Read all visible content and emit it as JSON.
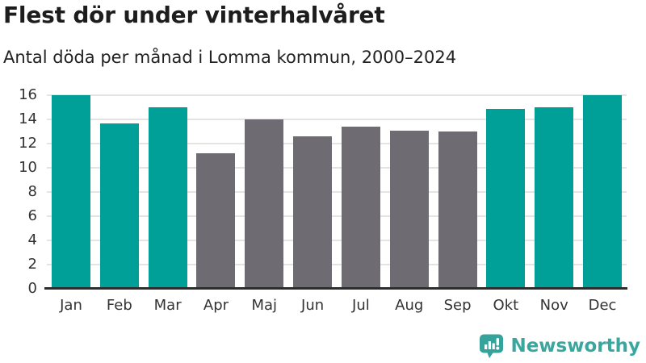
{
  "header": {
    "title": "Flest dör under vinterhalvåret",
    "subtitle": "Antal döda per månad i Lomma kommun, 2000–2024"
  },
  "chart_data": {
    "type": "bar",
    "title": "Flest dör under vinterhalvåret",
    "subtitle": "Antal döda per månad i Lomma kommun, 2000–2024",
    "categories": [
      "Jan",
      "Feb",
      "Mar",
      "Apr",
      "Maj",
      "Jun",
      "Jul",
      "Aug",
      "Sep",
      "Okt",
      "Nov",
      "Dec"
    ],
    "values": [
      16,
      13.7,
      15,
      11.2,
      14,
      12.6,
      13.4,
      13.1,
      13,
      14.9,
      15,
      16
    ],
    "bar_colors": [
      "#00a099",
      "#00a099",
      "#00a099",
      "#6e6b72",
      "#6e6b72",
      "#6e6b72",
      "#6e6b72",
      "#6e6b72",
      "#6e6b72",
      "#00a099",
      "#00a099",
      "#00a099"
    ],
    "xlabel": "",
    "ylabel": "",
    "ylim": [
      0,
      16
    ],
    "yticks": [
      0,
      2,
      4,
      6,
      8,
      10,
      12,
      14,
      16
    ],
    "grid": true,
    "legend": "none",
    "highlight_meaning": "teal = winter half-year months, gray = summer half-year months"
  },
  "footer": {
    "brand": "Newsworthy"
  },
  "colors": {
    "accent_teal": "#00a099",
    "neutral_gray": "#6e6b72",
    "logo_teal": "#3ba69e",
    "gridline": "#e4e4e4",
    "axis_line": "#2d2d2d",
    "text_dark": "#1d1d1d",
    "text_axis": "#333333",
    "background": "#ffffff"
  }
}
